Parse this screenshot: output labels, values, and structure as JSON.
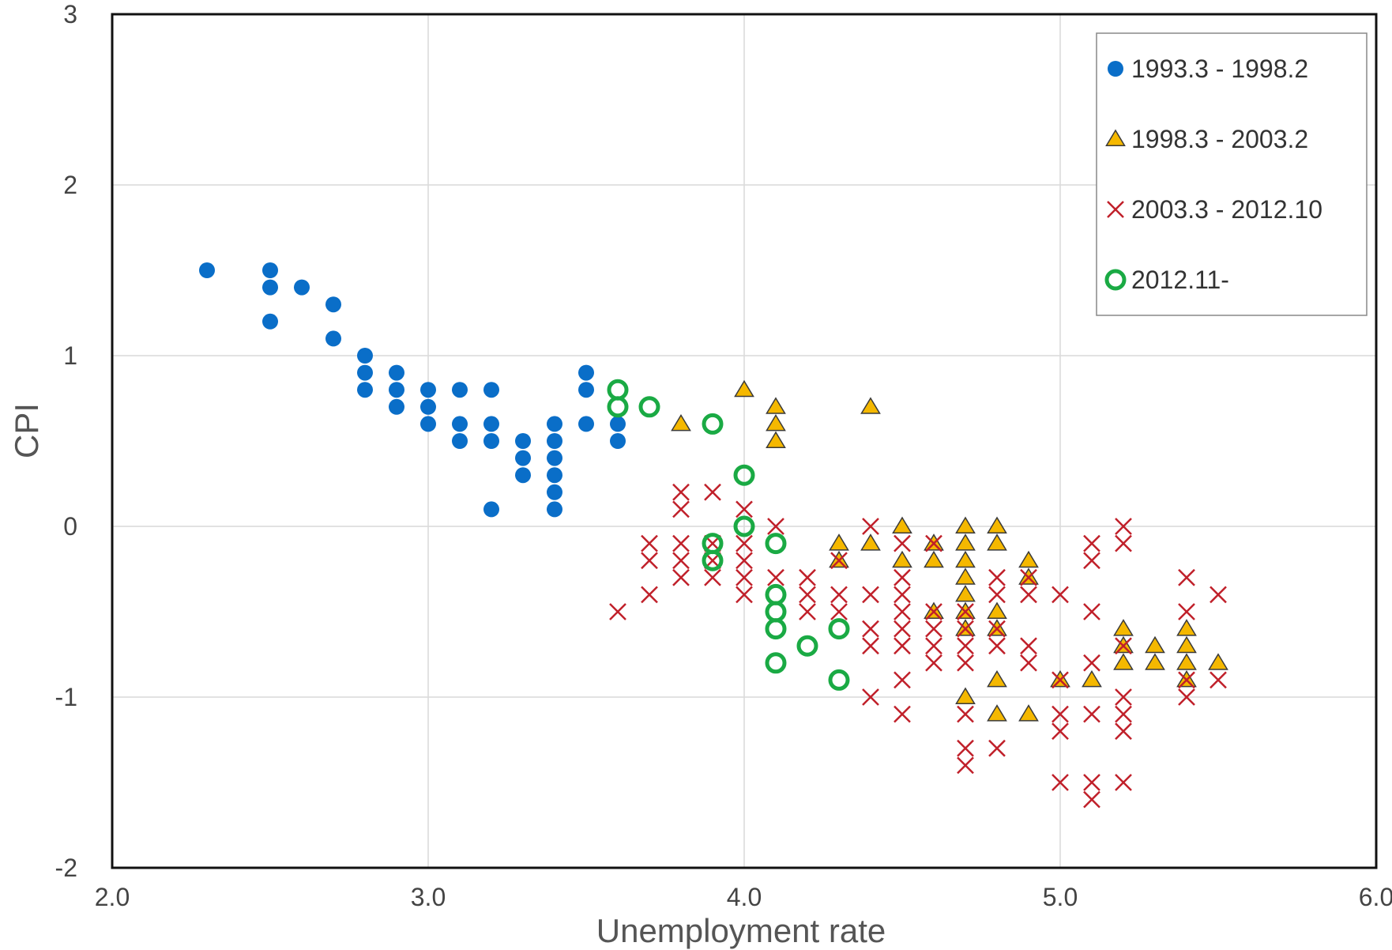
{
  "chart_data": {
    "type": "scatter",
    "xlabel": "Unemployment rate",
    "ylabel": "CPI",
    "xlim": [
      2.0,
      6.0
    ],
    "ylim": [
      -2,
      3
    ],
    "x_ticks": [
      "2.0",
      "3.0",
      "4.0",
      "5.0",
      "6.0"
    ],
    "y_ticks": [
      "-2",
      "-1",
      "0",
      "1",
      "2",
      "3"
    ],
    "grid": true,
    "legend_position": "top-right",
    "series": [
      {
        "name": "1993.3 - 1998.2",
        "marker": "circle",
        "color": "#0a6ec8",
        "points": [
          [
            2.3,
            1.5
          ],
          [
            2.5,
            1.5
          ],
          [
            2.5,
            1.4
          ],
          [
            2.5,
            1.2
          ],
          [
            2.6,
            1.4
          ],
          [
            2.7,
            1.3
          ],
          [
            2.7,
            1.1
          ],
          [
            2.8,
            1.0
          ],
          [
            2.8,
            0.9
          ],
          [
            2.8,
            0.8
          ],
          [
            2.9,
            0.9
          ],
          [
            2.9,
            0.8
          ],
          [
            2.9,
            0.7
          ],
          [
            3.0,
            0.8
          ],
          [
            3.0,
            0.7
          ],
          [
            3.0,
            0.6
          ],
          [
            3.1,
            0.8
          ],
          [
            3.1,
            0.6
          ],
          [
            3.1,
            0.5
          ],
          [
            3.2,
            0.8
          ],
          [
            3.2,
            0.6
          ],
          [
            3.2,
            0.5
          ],
          [
            3.2,
            0.1
          ],
          [
            3.3,
            0.5
          ],
          [
            3.3,
            0.4
          ],
          [
            3.3,
            0.3
          ],
          [
            3.4,
            0.6
          ],
          [
            3.4,
            0.5
          ],
          [
            3.4,
            0.4
          ],
          [
            3.4,
            0.3
          ],
          [
            3.4,
            0.2
          ],
          [
            3.4,
            0.1
          ],
          [
            3.5,
            0.9
          ],
          [
            3.5,
            0.8
          ],
          [
            3.5,
            0.6
          ],
          [
            3.6,
            0.6
          ],
          [
            3.6,
            0.5
          ]
        ]
      },
      {
        "name": "1998.3 - 2003.2",
        "marker": "triangle",
        "color": "#f5b800",
        "points": [
          [
            3.8,
            0.6
          ],
          [
            4.0,
            0.8
          ],
          [
            4.1,
            0.7
          ],
          [
            4.1,
            0.6
          ],
          [
            4.1,
            0.5
          ],
          [
            4.4,
            0.7
          ],
          [
            4.3,
            -0.1
          ],
          [
            4.3,
            -0.2
          ],
          [
            4.4,
            -0.1
          ],
          [
            4.5,
            0.0
          ],
          [
            4.5,
            -0.2
          ],
          [
            4.6,
            -0.1
          ],
          [
            4.6,
            -0.2
          ],
          [
            4.6,
            -0.5
          ],
          [
            4.7,
            0.0
          ],
          [
            4.7,
            -0.1
          ],
          [
            4.7,
            -0.2
          ],
          [
            4.7,
            -0.3
          ],
          [
            4.7,
            -0.4
          ],
          [
            4.7,
            -0.5
          ],
          [
            4.7,
            -0.6
          ],
          [
            4.7,
            -1.0
          ],
          [
            4.8,
            0.0
          ],
          [
            4.8,
            -0.1
          ],
          [
            4.8,
            -0.5
          ],
          [
            4.8,
            -0.6
          ],
          [
            4.8,
            -0.9
          ],
          [
            4.8,
            -1.1
          ],
          [
            4.9,
            -0.2
          ],
          [
            4.9,
            -0.3
          ],
          [
            4.9,
            -1.1
          ],
          [
            5.0,
            -0.9
          ],
          [
            5.1,
            -0.9
          ],
          [
            5.2,
            -0.6
          ],
          [
            5.2,
            -0.7
          ],
          [
            5.2,
            -0.8
          ],
          [
            5.3,
            -0.7
          ],
          [
            5.3,
            -0.8
          ],
          [
            5.4,
            -0.6
          ],
          [
            5.4,
            -0.7
          ],
          [
            5.4,
            -0.8
          ],
          [
            5.4,
            -0.9
          ],
          [
            5.5,
            -0.8
          ]
        ]
      },
      {
        "name": "2003.3 - 2012.10",
        "marker": "cross",
        "color": "#c0202a",
        "points": [
          [
            3.6,
            -0.5
          ],
          [
            3.7,
            -0.1
          ],
          [
            3.7,
            -0.2
          ],
          [
            3.7,
            -0.4
          ],
          [
            3.8,
            0.2
          ],
          [
            3.8,
            0.1
          ],
          [
            3.8,
            -0.1
          ],
          [
            3.8,
            -0.2
          ],
          [
            3.8,
            -0.3
          ],
          [
            3.9,
            0.2
          ],
          [
            3.9,
            -0.1
          ],
          [
            3.9,
            -0.2
          ],
          [
            3.9,
            -0.3
          ],
          [
            4.0,
            0.1
          ],
          [
            4.0,
            -0.1
          ],
          [
            4.0,
            -0.2
          ],
          [
            4.0,
            -0.3
          ],
          [
            4.0,
            -0.4
          ],
          [
            4.1,
            0.0
          ],
          [
            4.1,
            -0.3
          ],
          [
            4.2,
            -0.3
          ],
          [
            4.2,
            -0.4
          ],
          [
            4.2,
            -0.5
          ],
          [
            4.3,
            -0.2
          ],
          [
            4.3,
            -0.4
          ],
          [
            4.3,
            -0.5
          ],
          [
            4.4,
            0.0
          ],
          [
            4.4,
            -0.4
          ],
          [
            4.4,
            -0.6
          ],
          [
            4.4,
            -0.7
          ],
          [
            4.4,
            -1.0
          ],
          [
            4.5,
            -0.1
          ],
          [
            4.5,
            -0.3
          ],
          [
            4.5,
            -0.4
          ],
          [
            4.5,
            -0.5
          ],
          [
            4.5,
            -0.6
          ],
          [
            4.5,
            -0.7
          ],
          [
            4.5,
            -0.9
          ],
          [
            4.5,
            -1.1
          ],
          [
            4.6,
            -0.1
          ],
          [
            4.6,
            -0.5
          ],
          [
            4.6,
            -0.6
          ],
          [
            4.6,
            -0.7
          ],
          [
            4.6,
            -0.8
          ],
          [
            4.7,
            -0.5
          ],
          [
            4.7,
            -0.6
          ],
          [
            4.7,
            -0.7
          ],
          [
            4.7,
            -0.8
          ],
          [
            4.7,
            -1.1
          ],
          [
            4.7,
            -1.3
          ],
          [
            4.7,
            -1.4
          ],
          [
            4.8,
            -0.3
          ],
          [
            4.8,
            -0.4
          ],
          [
            4.8,
            -0.6
          ],
          [
            4.8,
            -0.7
          ],
          [
            4.8,
            -1.3
          ],
          [
            4.9,
            -0.3
          ],
          [
            4.9,
            -0.4
          ],
          [
            4.9,
            -0.7
          ],
          [
            4.9,
            -0.8
          ],
          [
            5.0,
            -0.4
          ],
          [
            5.0,
            -0.9
          ],
          [
            5.0,
            -1.1
          ],
          [
            5.0,
            -1.2
          ],
          [
            5.0,
            -1.5
          ],
          [
            5.1,
            -0.1
          ],
          [
            5.1,
            -0.2
          ],
          [
            5.1,
            -0.5
          ],
          [
            5.1,
            -0.8
          ],
          [
            5.1,
            -1.1
          ],
          [
            5.1,
            -1.5
          ],
          [
            5.1,
            -1.6
          ],
          [
            5.2,
            0.0
          ],
          [
            5.2,
            -0.1
          ],
          [
            5.2,
            -0.7
          ],
          [
            5.2,
            -1.0
          ],
          [
            5.2,
            -1.1
          ],
          [
            5.2,
            -1.2
          ],
          [
            5.2,
            -1.5
          ],
          [
            5.4,
            -0.3
          ],
          [
            5.4,
            -0.5
          ],
          [
            5.4,
            -0.9
          ],
          [
            5.4,
            -1.0
          ],
          [
            5.5,
            -0.4
          ],
          [
            5.5,
            -0.9
          ]
        ]
      },
      {
        "name": "2012.11-",
        "marker": "ring",
        "color": "#1aaa44",
        "points": [
          [
            3.6,
            0.8
          ],
          [
            3.6,
            0.7
          ],
          [
            3.7,
            0.7
          ],
          [
            3.9,
            0.6
          ],
          [
            3.9,
            -0.1
          ],
          [
            3.9,
            -0.2
          ],
          [
            4.0,
            0.3
          ],
          [
            4.0,
            0.0
          ],
          [
            4.1,
            -0.1
          ],
          [
            4.1,
            -0.4
          ],
          [
            4.1,
            -0.5
          ],
          [
            4.1,
            -0.6
          ],
          [
            4.1,
            -0.8
          ],
          [
            4.2,
            -0.7
          ],
          [
            4.3,
            -0.6
          ],
          [
            4.3,
            -0.9
          ]
        ]
      }
    ]
  }
}
